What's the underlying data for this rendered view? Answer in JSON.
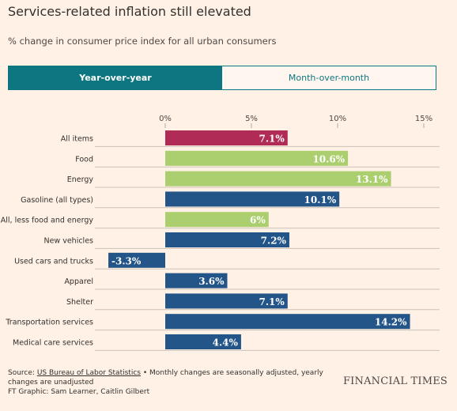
{
  "header": {
    "title": "Services-related inflation still elevated",
    "subtitle": "% change in consumer price index for all urban consumers"
  },
  "tabs": [
    {
      "label": "Year-over-year",
      "active": true
    },
    {
      "label": "Month-over-month",
      "active": false
    }
  ],
  "footer": {
    "source_prefix": "Source: ",
    "source_link": "US Bureau of Labor Statistics",
    "source_note": " • Monthly changes are seasonally adjusted, yearly changes are unadjusted",
    "credit": "FT Graphic: Sam Learner, Caitlin Gilbert",
    "logo": "FINANCIAL TIMES"
  },
  "colors": {
    "background": "#fff1e5",
    "accent": "#0d7680",
    "highlight": "#b02c57",
    "green": "#abcf6e",
    "blue": "#235589"
  },
  "chart_data": {
    "type": "bar",
    "orientation": "horizontal",
    "categories": [
      "All items",
      "Food",
      "Energy",
      "Gasoline (all types)",
      "All, less food and energy",
      "New vehicles",
      "Used cars and trucks",
      "Apparel",
      "Shelter",
      "Transportation services",
      "Medical care services"
    ],
    "values": [
      7.1,
      10.6,
      13.1,
      10.1,
      6,
      7.2,
      -3.3,
      3.6,
      7.1,
      14.2,
      4.4
    ],
    "labels": [
      "7.1%",
      "10.6%",
      "13.1%",
      "10.1%",
      "6%",
      "7.2%",
      "-3.3%",
      "3.6%",
      "7.1%",
      "14.2%",
      "4.4%"
    ],
    "bar_colors": [
      "#b02c57",
      "#abcf6e",
      "#abcf6e",
      "#235589",
      "#abcf6e",
      "#235589",
      "#235589",
      "#235589",
      "#235589",
      "#235589",
      "#235589"
    ],
    "xticks": [
      0,
      5,
      10,
      15
    ],
    "xtick_labels": [
      "0%",
      "5%",
      "10%",
      "15%"
    ],
    "xlim": [
      -3.3,
      15
    ],
    "grid": true
  }
}
